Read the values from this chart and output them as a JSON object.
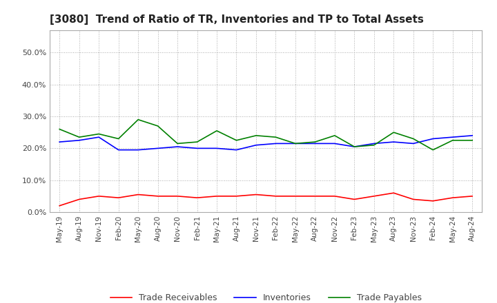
{
  "title": "[3080]  Trend of Ratio of TR, Inventories and TP to Total Assets",
  "x_labels": [
    "May-19",
    "Aug-19",
    "Nov-19",
    "Feb-20",
    "May-20",
    "Aug-20",
    "Nov-20",
    "Feb-21",
    "May-21",
    "Aug-21",
    "Nov-21",
    "Feb-22",
    "May-22",
    "Aug-22",
    "Nov-22",
    "Feb-23",
    "May-23",
    "Aug-23",
    "Nov-23",
    "Feb-24",
    "May-24",
    "Aug-24"
  ],
  "trade_receivables": [
    2.0,
    4.0,
    5.0,
    4.5,
    5.5,
    5.0,
    5.0,
    4.5,
    5.0,
    5.0,
    5.5,
    5.0,
    5.0,
    5.0,
    5.0,
    4.0,
    5.0,
    6.0,
    4.0,
    3.5,
    4.5,
    5.0
  ],
  "inventories": [
    22.0,
    22.5,
    23.5,
    19.5,
    19.5,
    20.0,
    20.5,
    20.0,
    20.0,
    19.5,
    21.0,
    21.5,
    21.5,
    21.5,
    21.5,
    20.5,
    21.5,
    22.0,
    21.5,
    23.0,
    23.5,
    24.0
  ],
  "trade_payables": [
    26.0,
    23.5,
    24.5,
    23.0,
    29.0,
    27.0,
    21.5,
    22.0,
    25.5,
    22.5,
    24.0,
    23.5,
    21.5,
    22.0,
    24.0,
    20.5,
    21.0,
    25.0,
    23.0,
    19.5,
    22.5,
    22.5
  ],
  "tr_color": "#ff0000",
  "inv_color": "#0000ff",
  "tp_color": "#008000",
  "ylim": [
    0,
    57
  ],
  "yticks": [
    0.0,
    10.0,
    20.0,
    30.0,
    40.0,
    50.0
  ],
  "background_color": "#ffffff",
  "grid_color": "#aaaaaa",
  "title_fontsize": 11,
  "legend_labels": [
    "Trade Receivables",
    "Inventories",
    "Trade Payables"
  ]
}
